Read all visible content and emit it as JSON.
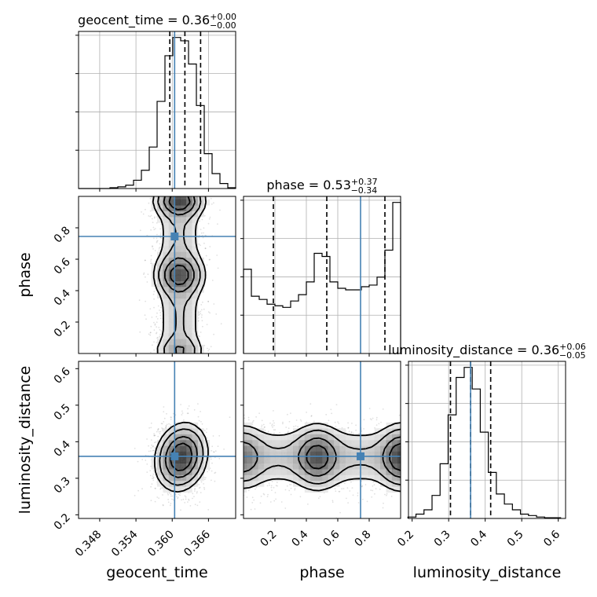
{
  "chart_data": {
    "type": "corner",
    "parameters": [
      "geocent_time",
      "phase",
      "luminosity_distance"
    ],
    "truth_color": "#4682b4",
    "density_color": "#000000",
    "grid": true,
    "titles": [
      {
        "param": "geocent_time",
        "prefix": "geocent_time = ",
        "median": "0.36",
        "upper": "+0.00",
        "lower": "−0.00"
      },
      {
        "param": "phase",
        "prefix": "phase = ",
        "median": "0.53",
        "upper": "+0.37",
        "lower": "−0.34"
      },
      {
        "param": "luminosity_distance",
        "prefix": "luminosity_distance = ",
        "median": "0.36",
        "upper": "+0.06",
        "lower": "−0.05"
      }
    ],
    "ranges": {
      "geocent_time": [
        0.3445,
        0.3705
      ],
      "phase": [
        0.0,
        1.0
      ],
      "luminosity_distance": [
        0.19,
        0.62
      ]
    },
    "ticks": {
      "geocent_time": [
        "0.348",
        "0.354",
        "0.360",
        "0.366"
      ],
      "phase": [
        "0.2",
        "0.4",
        "0.6",
        "0.8"
      ],
      "luminosity_distance": [
        "0.2",
        "0.3",
        "0.4",
        "0.5",
        "0.6"
      ]
    },
    "truths": {
      "geocent_time": 0.3604,
      "phase": 0.745,
      "luminosity_distance": 0.36
    },
    "quantiles": {
      "geocent_time": [
        0.3596,
        0.3621,
        0.3647
      ],
      "phase": [
        0.19,
        0.53,
        0.9
      ],
      "luminosity_distance": [
        0.305,
        0.36,
        0.415
      ]
    },
    "histograms": {
      "geocent_time": {
        "edges": [
          0.3445,
          0.3458,
          0.3471,
          0.3484,
          0.3497,
          0.351,
          0.3523,
          0.3536,
          0.3549,
          0.3562,
          0.3575,
          0.3588,
          0.3601,
          0.3614,
          0.3627,
          0.364,
          0.3653,
          0.3666,
          0.3679,
          0.3692,
          0.3705
        ],
        "counts": [
          0,
          0,
          0,
          0,
          1,
          2,
          4,
          10,
          22,
          50,
          105,
          160,
          182,
          178,
          150,
          100,
          42,
          18,
          6,
          1
        ]
      },
      "phase": {
        "edges": [
          0.0,
          0.05,
          0.1,
          0.15,
          0.2,
          0.25,
          0.3,
          0.35,
          0.4,
          0.45,
          0.5,
          0.55,
          0.6,
          0.65,
          0.7,
          0.75,
          0.8,
          0.85,
          0.9,
          0.95,
          1.0
        ],
        "counts": [
          0.53,
          0.36,
          0.34,
          0.31,
          0.3,
          0.29,
          0.33,
          0.37,
          0.45,
          0.63,
          0.61,
          0.45,
          0.41,
          0.4,
          0.4,
          0.42,
          0.43,
          0.48,
          0.65,
          0.95
        ]
      },
      "luminosity_distance": {
        "edges": [
          0.1885,
          0.2105,
          0.2325,
          0.2545,
          0.2765,
          0.2985,
          0.3205,
          0.3425,
          0.3645,
          0.3865,
          0.4085,
          0.4305,
          0.4525,
          0.4745,
          0.4965,
          0.5185,
          0.5405,
          0.5625,
          0.5845,
          0.6065
        ],
        "counts": [
          1,
          3,
          6,
          16,
          38,
          72,
          98,
          105,
          90,
          60,
          32,
          17,
          10,
          6,
          3,
          2,
          1,
          0.5,
          0.5
        ]
      }
    },
    "contour_levels": [
      0.12,
      0.25,
      0.48,
      0.72
    ]
  }
}
